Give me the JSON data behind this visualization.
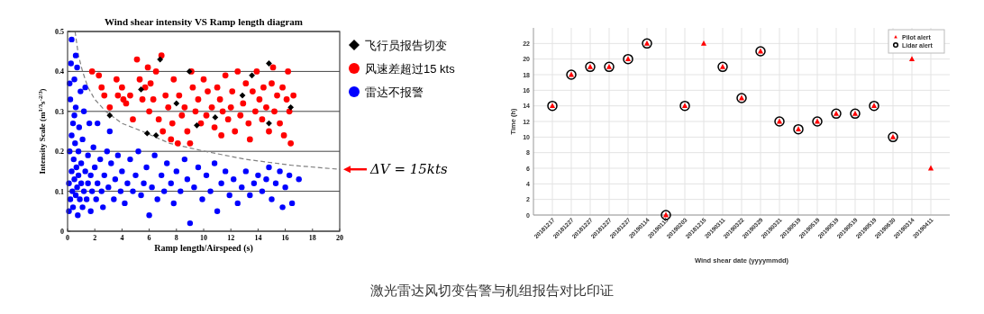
{
  "chart_data": [
    {
      "type": "scatter",
      "title": "Wind shear intensity VS Ramp length diagram",
      "xlabel": "Ramp length/Airspeed (s)",
      "ylabel": "Intensity Scale (m$^{1/3}$s$^{-2/3}$)",
      "xlim": [
        0,
        20
      ],
      "xticks": [
        0,
        2,
        4,
        6,
        8,
        10,
        12,
        14,
        16,
        18,
        20
      ],
      "ylim": [
        0,
        0.5
      ],
      "yticks": [
        0,
        0.1,
        0.2,
        0.3,
        0.4,
        0.5
      ],
      "grid": "y",
      "legend": "right",
      "annotations": [
        {
          "text": "ΔV = 15kts",
          "x": 20,
          "y": 0.155
        }
      ],
      "series": [
        {
          "name": "飞行员报告切变",
          "color": "#000000",
          "marker": "diamond",
          "x": [
            3.1,
            5.4,
            5.85,
            6.5,
            6.8,
            8.0,
            8.95,
            9.5,
            10.85,
            12.85,
            13.55,
            14.8,
            16.4,
            14.8
          ],
          "values": [
            0.29,
            0.355,
            0.245,
            0.24,
            0.43,
            0.32,
            0.4,
            0.265,
            0.285,
            0.34,
            0.39,
            0.42,
            0.31,
            0.27
          ]
        },
        {
          "name": "风速差超过15 kts",
          "color": "#ff0000",
          "marker": "circle",
          "x": [
            1.8,
            2.3,
            2.5,
            2.7,
            3.1,
            3.6,
            3.7,
            4.0,
            4.1,
            4.3,
            4.6,
            4.8,
            5.1,
            5.3,
            5.5,
            5.7,
            5.9,
            6.0,
            6.1,
            6.3,
            6.5,
            6.7,
            6.9,
            7.0,
            7.2,
            7.4,
            7.6,
            7.7,
            7.8,
            8.1,
            8.2,
            8.4,
            8.6,
            8.8,
            9.1,
            9.2,
            9.4,
            9.6,
            9.8,
            10.0,
            10.2,
            10.3,
            10.6,
            10.8,
            11.0,
            11.2,
            11.4,
            11.6,
            11.8,
            12.0,
            12.1,
            12.3,
            12.5,
            12.7,
            12.9,
            13.1,
            13.3,
            13.4,
            13.6,
            13.8,
            13.9,
            14.1,
            14.3,
            14.4,
            14.6,
            14.8,
            15.0,
            15.1,
            15.2,
            15.4,
            15.6,
            15.8,
            15.9,
            16.1,
            16.3,
            16.4,
            16.6,
            16.2,
            9.0,
            11.3
          ],
          "values": [
            0.4,
            0.39,
            0.36,
            0.34,
            0.31,
            0.38,
            0.34,
            0.36,
            0.33,
            0.32,
            0.34,
            0.28,
            0.43,
            0.38,
            0.33,
            0.36,
            0.41,
            0.3,
            0.37,
            0.33,
            0.4,
            0.28,
            0.44,
            0.25,
            0.34,
            0.31,
            0.23,
            0.27,
            0.38,
            0.22,
            0.34,
            0.29,
            0.31,
            0.25,
            0.4,
            0.36,
            0.3,
            0.33,
            0.27,
            0.38,
            0.29,
            0.35,
            0.31,
            0.26,
            0.36,
            0.33,
            0.3,
            0.39,
            0.28,
            0.31,
            0.35,
            0.25,
            0.4,
            0.29,
            0.32,
            0.37,
            0.27,
            0.23,
            0.35,
            0.3,
            0.4,
            0.33,
            0.28,
            0.36,
            0.31,
            0.25,
            0.37,
            0.41,
            0.3,
            0.34,
            0.27,
            0.36,
            0.24,
            0.33,
            0.3,
            0.22,
            0.34,
            0.4,
            0.22,
            0.24
          ]
        },
        {
          "name": "雷达不报警",
          "color": "#0000ff",
          "marker": "circle",
          "x": [
            0.1,
            0.1,
            0.15,
            0.2,
            0.2,
            0.25,
            0.3,
            0.3,
            0.35,
            0.4,
            0.4,
            0.45,
            0.5,
            0.5,
            0.55,
            0.6,
            0.6,
            0.65,
            0.7,
            0.7,
            0.75,
            0.8,
            0.8,
            0.85,
            0.9,
            0.95,
            1.0,
            1.0,
            1.1,
            1.1,
            1.2,
            1.2,
            1.3,
            1.3,
            1.4,
            1.5,
            1.5,
            1.6,
            1.7,
            1.7,
            1.8,
            1.9,
            2.0,
            2.1,
            2.2,
            2.2,
            2.4,
            2.5,
            2.6,
            2.7,
            2.9,
            3.0,
            3.1,
            3.2,
            3.4,
            3.5,
            3.7,
            3.9,
            4.0,
            4.2,
            4.4,
            4.6,
            4.8,
            5.0,
            5.2,
            5.4,
            5.6,
            5.8,
            6.0,
            6.2,
            6.4,
            6.6,
            6.9,
            7.1,
            7.3,
            7.6,
            7.8,
            8.0,
            8.3,
            8.6,
            8.8,
            9.0,
            9.3,
            9.6,
            9.9,
            10.2,
            10.5,
            10.8,
            11.0,
            11.3,
            11.6,
            11.9,
            12.2,
            12.5,
            12.8,
            13.1,
            13.4,
            13.7,
            14.0,
            14.3,
            14.6,
            14.8,
            15.0,
            15.3,
            15.6,
            15.8,
            16.0,
            16.3,
            16.5,
            17.0,
            0.3,
            0.5,
            0.15,
            0.6
          ],
          "values": [
            0.05,
            0.12,
            0.2,
            0.33,
            0.08,
            0.42,
            0.15,
            0.48,
            0.1,
            0.27,
            0.06,
            0.18,
            0.13,
            0.38,
            0.22,
            0.09,
            0.31,
            0.16,
            0.11,
            0.41,
            0.04,
            0.2,
            0.14,
            0.26,
            0.08,
            0.35,
            0.12,
            0.17,
            0.06,
            0.23,
            0.1,
            0.3,
            0.15,
            0.36,
            0.08,
            0.19,
            0.12,
            0.27,
            0.05,
            0.14,
            0.1,
            0.21,
            0.16,
            0.08,
            0.12,
            0.27,
            0.18,
            0.1,
            0.06,
            0.14,
            0.2,
            0.11,
            0.25,
            0.17,
            0.08,
            0.13,
            0.19,
            0.1,
            0.15,
            0.07,
            0.12,
            0.18,
            0.1,
            0.14,
            0.2,
            0.09,
            0.12,
            0.16,
            0.04,
            0.11,
            0.19,
            0.08,
            0.14,
            0.1,
            0.17,
            0.12,
            0.07,
            0.15,
            0.1,
            0.18,
            0.13,
            0.02,
            0.11,
            0.16,
            0.08,
            0.14,
            0.1,
            0.17,
            0.05,
            0.12,
            0.15,
            0.09,
            0.13,
            0.07,
            0.11,
            0.15,
            0.09,
            0.12,
            0.14,
            0.1,
            0.13,
            0.16,
            0.08,
            0.12,
            0.15,
            0.06,
            0.11,
            0.14,
            0.07,
            0.13,
            0.24,
            0.29,
            0.37,
            0.44
          ]
        },
        {
          "type": "line",
          "color": "#808080",
          "line_style": "dashed",
          "x": [
            0.55,
            0.8,
            1.1,
            1.5,
            2.0,
            2.8,
            4.0,
            5.5,
            7.5,
            10.1,
            13.1,
            16.5,
            20
          ],
          "values": [
            0.5,
            0.44,
            0.4,
            0.36,
            0.33,
            0.3,
            0.27,
            0.25,
            0.22,
            0.2,
            0.18,
            0.165,
            0.155
          ]
        }
      ]
    },
    {
      "type": "scatter",
      "xlabel": "Wind shear date (yyyymmdd)",
      "ylabel": "Time (h)",
      "ylim": [
        0,
        24
      ],
      "yticks": [
        0,
        2,
        4,
        6,
        8,
        10,
        12,
        14,
        16,
        18,
        20,
        22
      ],
      "grid": true,
      "legend": "top right",
      "categories": [
        "20181217",
        "20181227",
        "20181227",
        "20181227",
        "20181227",
        "20190114",
        "20190115",
        "20190203",
        "20181215",
        "20190311",
        "20190322",
        "20190329",
        "20190331",
        "20190519",
        "20190519",
        "20190519",
        "20190519",
        "20190519",
        "20190630",
        "20190314",
        "20190411"
      ],
      "series": [
        {
          "name": "Pilot alert",
          "color": "#ff0000",
          "marker": "triangle",
          "values": [
            14,
            18,
            19,
            19,
            20,
            22,
            0,
            14,
            22,
            19,
            15,
            21,
            12,
            11,
            12,
            13,
            13,
            14,
            10,
            20,
            6
          ]
        },
        {
          "name": "Lidar alert",
          "color": "#000000",
          "marker": "circle",
          "values": [
            14,
            18,
            19,
            19,
            20,
            22,
            0,
            14,
            null,
            19,
            15,
            21,
            12,
            11,
            12,
            13,
            13,
            14,
            10,
            null,
            null
          ]
        }
      ]
    },
    {
      "type": "other",
      "title": "激光雷达风切变告警与机组报告对比印证"
    }
  ]
}
